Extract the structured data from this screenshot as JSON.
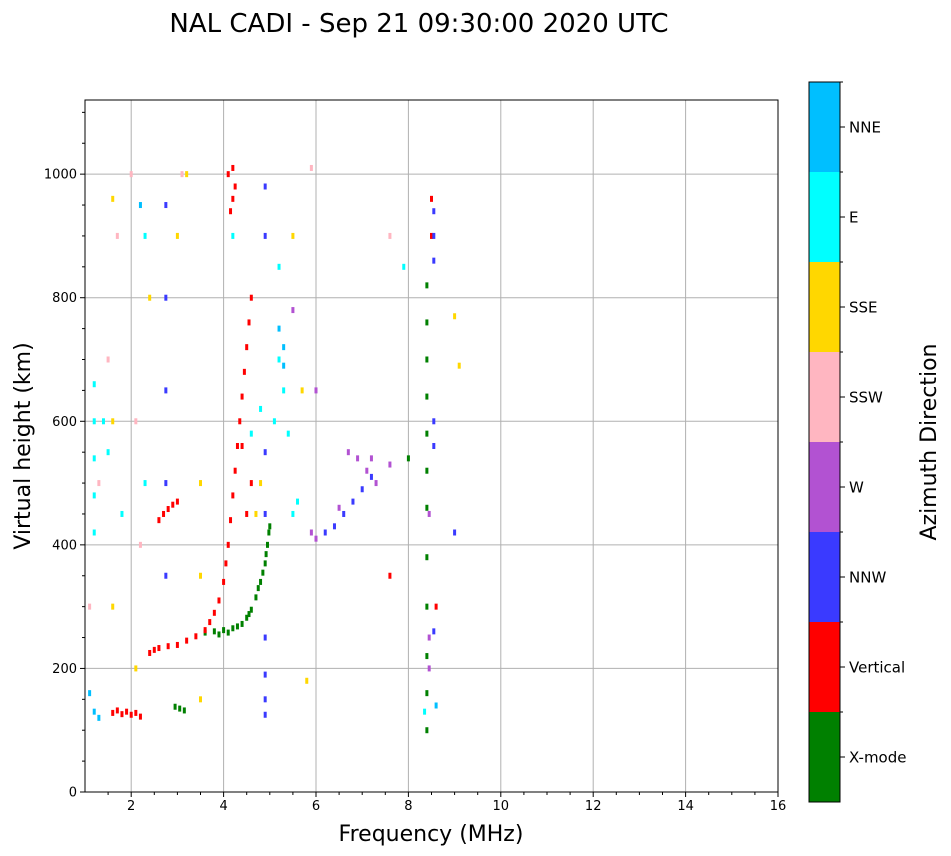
{
  "chart_data": {
    "type": "scatter",
    "title": "NAL CADI - Sep 21 09:30:00 2020 UTC",
    "xlabel": "Frequency (MHz)",
    "ylabel": "Virtual height (km)",
    "xlim": [
      1,
      16
    ],
    "ylim": [
      0,
      1120
    ],
    "x_ticks": [
      2,
      4,
      6,
      8,
      10,
      12,
      14,
      16
    ],
    "y_ticks": [
      0,
      200,
      400,
      600,
      800,
      1000
    ],
    "grid": true,
    "colorbar": {
      "label": "Azimuth Direction",
      "categories": [
        {
          "name": "X-mode",
          "color": "#008000"
        },
        {
          "name": "Vertical",
          "color": "#ff0000"
        },
        {
          "name": "NNW",
          "color": "#3a3aff"
        },
        {
          "name": "W",
          "color": "#b252d2"
        },
        {
          "name": "SSW",
          "color": "#ffb6c1"
        },
        {
          "name": "SSE",
          "color": "#ffd700"
        },
        {
          "name": "E",
          "color": "#00ffff"
        },
        {
          "name": "NNE",
          "color": "#00bfff"
        }
      ]
    },
    "series": [
      {
        "name": "X-mode",
        "points": [
          [
            3.6,
            258
          ],
          [
            3.8,
            260
          ],
          [
            4.0,
            262
          ],
          [
            4.2,
            265
          ],
          [
            4.4,
            272
          ],
          [
            4.5,
            282
          ],
          [
            4.6,
            295
          ],
          [
            4.7,
            315
          ],
          [
            4.8,
            340
          ],
          [
            4.9,
            370
          ],
          [
            4.95,
            400
          ],
          [
            5.0,
            430
          ],
          [
            3.9,
            255
          ],
          [
            4.1,
            258
          ],
          [
            4.3,
            268
          ],
          [
            4.55,
            288
          ],
          [
            4.75,
            330
          ],
          [
            4.85,
            355
          ],
          [
            4.92,
            385
          ],
          [
            4.98,
            420
          ],
          [
            8.4,
            100
          ],
          [
            8.4,
            160
          ],
          [
            8.4,
            220
          ],
          [
            8.4,
            300
          ],
          [
            8.4,
            380
          ],
          [
            8.4,
            460
          ],
          [
            8.4,
            520
          ],
          [
            8.4,
            580
          ],
          [
            8.4,
            640
          ],
          [
            8.4,
            700
          ],
          [
            8.4,
            760
          ],
          [
            8.4,
            820
          ],
          [
            2.95,
            138
          ],
          [
            3.05,
            135
          ],
          [
            3.15,
            132
          ],
          [
            8.0,
            540
          ]
        ]
      },
      {
        "name": "Vertical",
        "points": [
          [
            2.4,
            225
          ],
          [
            2.5,
            230
          ],
          [
            2.6,
            233
          ],
          [
            2.8,
            236
          ],
          [
            3.0,
            238
          ],
          [
            3.2,
            245
          ],
          [
            3.4,
            252
          ],
          [
            3.6,
            262
          ],
          [
            3.7,
            275
          ],
          [
            3.8,
            290
          ],
          [
            3.9,
            310
          ],
          [
            4.0,
            340
          ],
          [
            4.05,
            370
          ],
          [
            4.1,
            400
          ],
          [
            4.15,
            440
          ],
          [
            4.2,
            480
          ],
          [
            4.25,
            520
          ],
          [
            4.3,
            560
          ],
          [
            4.35,
            600
          ],
          [
            4.4,
            640
          ],
          [
            4.45,
            680
          ],
          [
            4.5,
            720
          ],
          [
            4.55,
            760
          ],
          [
            4.6,
            800
          ],
          [
            2.6,
            440
          ],
          [
            2.7,
            450
          ],
          [
            2.8,
            458
          ],
          [
            2.9,
            465
          ],
          [
            3.0,
            470
          ],
          [
            4.15,
            940
          ],
          [
            4.2,
            960
          ],
          [
            4.25,
            980
          ],
          [
            4.1,
            1000
          ],
          [
            4.2,
            1010
          ],
          [
            1.6,
            128
          ],
          [
            1.7,
            132
          ],
          [
            1.8,
            126
          ],
          [
            1.9,
            130
          ],
          [
            2.0,
            125
          ],
          [
            2.1,
            128
          ],
          [
            2.2,
            122
          ],
          [
            8.5,
            900
          ],
          [
            8.5,
            960
          ],
          [
            7.6,
            350
          ],
          [
            8.6,
            300
          ],
          [
            4.5,
            450
          ],
          [
            4.6,
            500
          ],
          [
            4.4,
            560
          ]
        ]
      },
      {
        "name": "NNW",
        "points": [
          [
            2.75,
            350
          ],
          [
            2.75,
            500
          ],
          [
            2.75,
            650
          ],
          [
            2.75,
            800
          ],
          [
            2.75,
            950
          ],
          [
            8.55,
            260
          ],
          [
            8.55,
            560
          ],
          [
            8.55,
            600
          ],
          [
            8.55,
            860
          ],
          [
            8.55,
            900
          ],
          [
            8.55,
            940
          ],
          [
            6.2,
            420
          ],
          [
            6.4,
            430
          ],
          [
            6.6,
            450
          ],
          [
            6.8,
            470
          ],
          [
            7.0,
            490
          ],
          [
            7.2,
            510
          ],
          [
            9.0,
            420
          ],
          [
            4.9,
            190
          ],
          [
            4.9,
            250
          ],
          [
            4.9,
            450
          ],
          [
            4.9,
            550
          ],
          [
            4.9,
            900
          ],
          [
            4.9,
            980
          ],
          [
            4.9,
            150
          ],
          [
            4.9,
            125
          ]
        ]
      },
      {
        "name": "W",
        "points": [
          [
            6.7,
            550
          ],
          [
            6.9,
            540
          ],
          [
            7.1,
            520
          ],
          [
            7.3,
            500
          ],
          [
            5.9,
            420
          ],
          [
            6.0,
            410
          ],
          [
            6.5,
            460
          ],
          [
            7.2,
            540
          ],
          [
            8.45,
            200
          ],
          [
            8.45,
            250
          ],
          [
            8.45,
            450
          ],
          [
            5.5,
            780
          ],
          [
            6.0,
            650
          ],
          [
            7.6,
            530
          ]
        ]
      },
      {
        "name": "SSW",
        "points": [
          [
            1.1,
            300
          ],
          [
            1.3,
            500
          ],
          [
            1.5,
            700
          ],
          [
            1.7,
            900
          ],
          [
            2.0,
            1000
          ],
          [
            2.1,
            600
          ],
          [
            2.2,
            400
          ],
          [
            3.1,
            1000
          ],
          [
            5.9,
            1010
          ],
          [
            7.6,
            900
          ]
        ]
      },
      {
        "name": "SSE",
        "points": [
          [
            1.6,
            300
          ],
          [
            1.6,
            600
          ],
          [
            1.6,
            960
          ],
          [
            2.1,
            200
          ],
          [
            2.4,
            800
          ],
          [
            3.0,
            900
          ],
          [
            3.2,
            1000
          ],
          [
            3.5,
            350
          ],
          [
            3.5,
            150
          ],
          [
            3.5,
            500
          ],
          [
            4.8,
            500
          ],
          [
            4.7,
            450
          ],
          [
            5.7,
            650
          ],
          [
            5.5,
            900
          ],
          [
            9.0,
            770
          ],
          [
            9.1,
            690
          ],
          [
            5.8,
            180
          ]
        ]
      },
      {
        "name": "E",
        "points": [
          [
            1.2,
            420
          ],
          [
            1.2,
            480
          ],
          [
            1.2,
            540
          ],
          [
            1.2,
            600
          ],
          [
            1.2,
            660
          ],
          [
            1.4,
            600
          ],
          [
            1.5,
            550
          ],
          [
            1.8,
            450
          ],
          [
            2.3,
            500
          ],
          [
            2.3,
            900
          ],
          [
            5.2,
            700
          ],
          [
            5.3,
            650
          ],
          [
            5.1,
            600
          ],
          [
            5.4,
            580
          ],
          [
            5.5,
            450
          ],
          [
            5.6,
            470
          ],
          [
            4.6,
            580
          ],
          [
            4.8,
            620
          ],
          [
            5.2,
            850
          ],
          [
            7.9,
            850
          ],
          [
            8.35,
            130
          ],
          [
            4.2,
            900
          ]
        ]
      },
      {
        "name": "NNE",
        "points": [
          [
            5.3,
            720
          ],
          [
            5.2,
            750
          ],
          [
            5.3,
            690
          ],
          [
            1.2,
            130
          ],
          [
            1.3,
            120
          ],
          [
            1.1,
            160
          ],
          [
            2.2,
            950
          ],
          [
            8.6,
            140
          ]
        ]
      }
    ]
  }
}
